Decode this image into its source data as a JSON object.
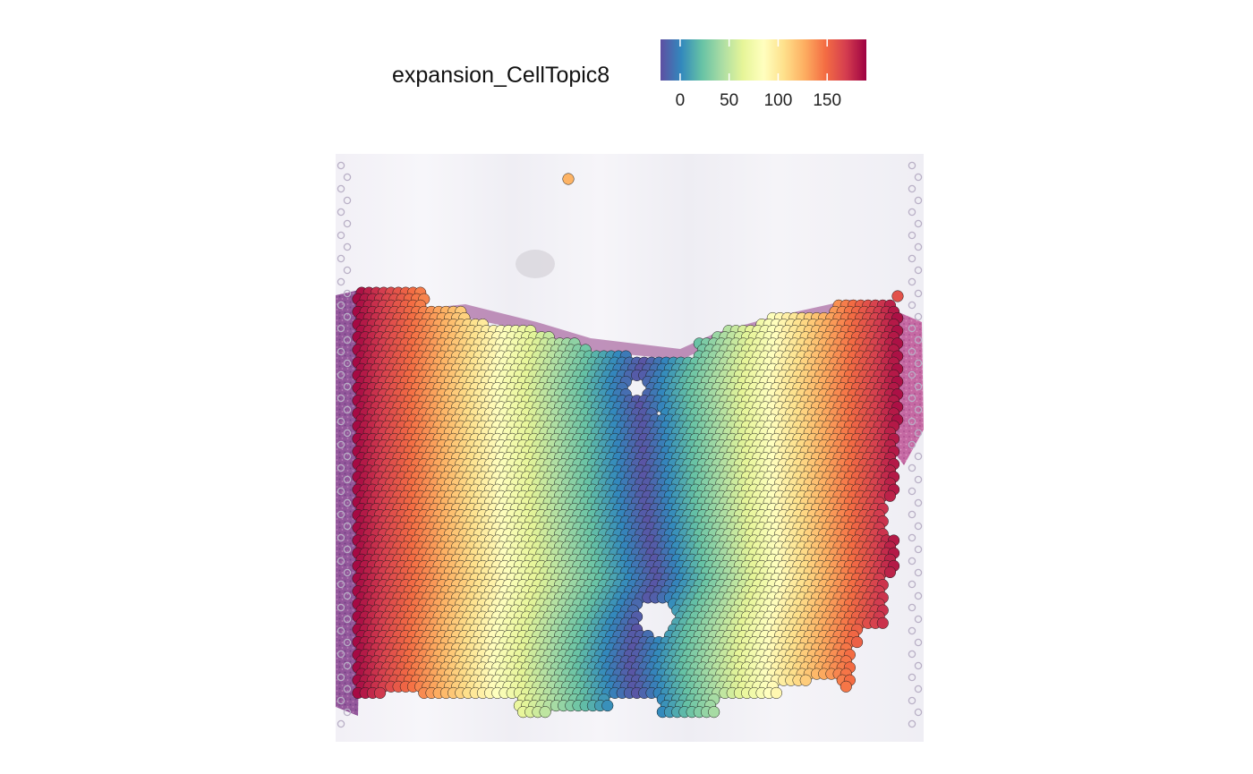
{
  "chart_data": {
    "type": "spatial_scatter",
    "title": "",
    "color_variable": "expansion_CellTopic8",
    "legend": {
      "title": "expansion_CellTopic8",
      "palette": "Spectral (reversed)",
      "range": [
        -20,
        190
      ],
      "ticks": [
        0,
        50,
        100,
        150
      ],
      "tick_labels": [
        "0",
        "50",
        "100",
        "150"
      ],
      "colors": [
        "#5E4FA2",
        "#3288BD",
        "#66C2A5",
        "#ABDDA4",
        "#E6F598",
        "#FFFFBF",
        "#FEE08B",
        "#FDAE61",
        "#F46D43",
        "#D53E4F",
        "#9E0142"
      ]
    },
    "background": "H&E tissue histology image",
    "grid": false,
    "axes": "none",
    "spot_layout": "hexagonal Visium-style grid",
    "value_pattern": "low values along a vertical central channel, increasing symmetrically toward the left and right tissue edges",
    "bands": [
      {
        "side": "center",
        "value": -15
      },
      {
        "side": "inner",
        "value": 10
      },
      {
        "side": "",
        "value": 35
      },
      {
        "side": "",
        "value": 60
      },
      {
        "side": "",
        "value": 85
      },
      {
        "side": "",
        "value": 110
      },
      {
        "side": "",
        "value": 135
      },
      {
        "side": "",
        "value": 160
      },
      {
        "side": "outer",
        "value": 185
      }
    ],
    "isolated_spots": [
      {
        "location": "top, above tissue",
        "value": 125
      },
      {
        "location": "right edge, top",
        "value": 160
      }
    ]
  }
}
